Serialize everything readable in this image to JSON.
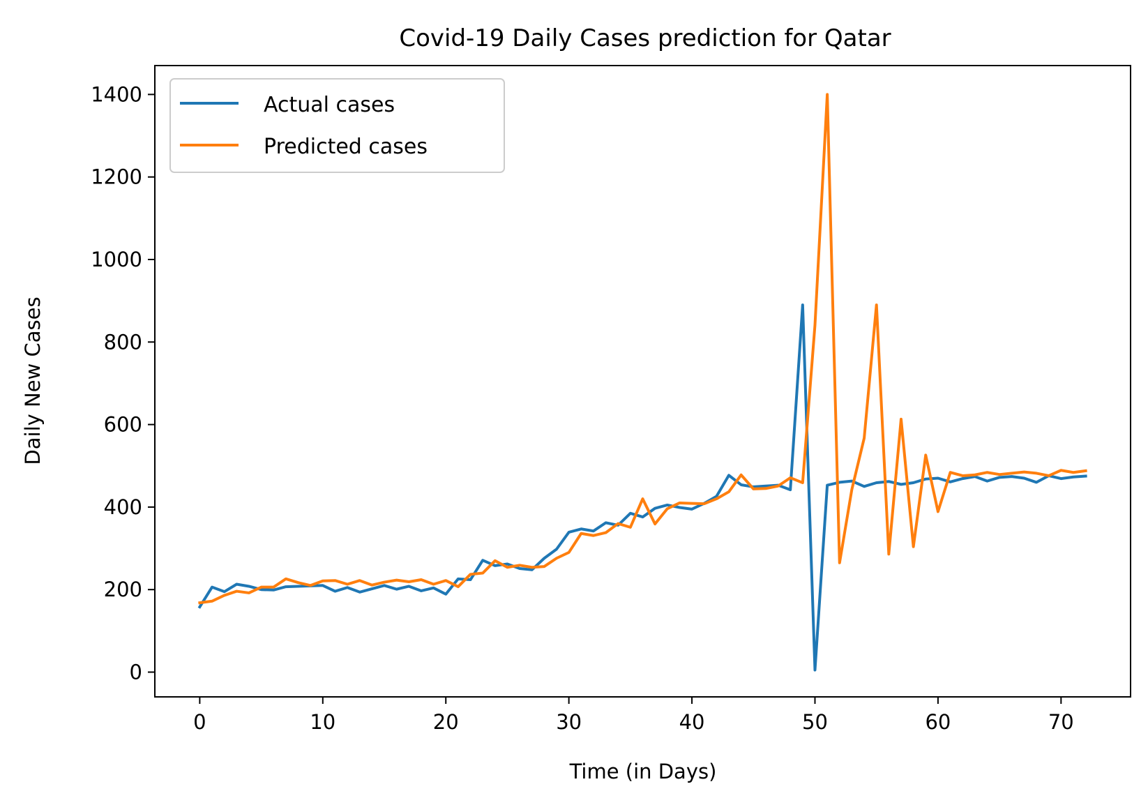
{
  "chart_data": {
    "type": "line",
    "title": "Covid-19 Daily Cases prediction for Qatar",
    "xlabel": "Time (in Days)",
    "ylabel": "Daily New Cases",
    "xlim": [
      -3.65,
      75.65
    ],
    "ylim": [
      -60,
      1470
    ],
    "xticks": [
      0,
      10,
      20,
      30,
      40,
      50,
      60,
      70
    ],
    "yticks": [
      0,
      200,
      400,
      600,
      800,
      1000,
      1200,
      1400
    ],
    "grid": false,
    "legend_position": "upper left",
    "x": [
      0,
      1,
      2,
      3,
      4,
      5,
      6,
      7,
      8,
      9,
      10,
      11,
      12,
      13,
      14,
      15,
      16,
      17,
      18,
      19,
      20,
      21,
      22,
      23,
      24,
      25,
      26,
      27,
      28,
      29,
      30,
      31,
      32,
      33,
      34,
      35,
      36,
      37,
      38,
      39,
      40,
      41,
      42,
      43,
      44,
      45,
      46,
      47,
      48,
      49,
      50,
      51,
      52,
      53,
      54,
      55,
      56,
      57,
      58,
      59,
      60,
      61,
      62,
      63,
      64,
      65,
      66,
      67,
      68,
      69,
      70,
      71,
      72
    ],
    "series": [
      {
        "name": "Actual cases",
        "color": "#1f77b4",
        "values": [
          158,
          206,
          195,
          213,
          208,
          200,
          199,
          207,
          208,
          209,
          210,
          196,
          205,
          194,
          202,
          210,
          201,
          208,
          197,
          204,
          189,
          226,
          224,
          271,
          258,
          262,
          251,
          248,
          276,
          298,
          339,
          347,
          342,
          362,
          356,
          385,
          376,
          397,
          405,
          399,
          395,
          409,
          426,
          477,
          454,
          449,
          451,
          453,
          442,
          890,
          5,
          453,
          460,
          463,
          450,
          459,
          462,
          455,
          459,
          468,
          470,
          461,
          469,
          474,
          463,
          472,
          474,
          470,
          460,
          476,
          469,
          473,
          475
        ]
      },
      {
        "name": "Predicted cases",
        "color": "#ff7f0e",
        "values": [
          168,
          172,
          186,
          196,
          192,
          206,
          206,
          226,
          217,
          210,
          221,
          222,
          213,
          222,
          211,
          218,
          223,
          219,
          224,
          213,
          222,
          207,
          237,
          240,
          270,
          254,
          259,
          254,
          256,
          276,
          290,
          336,
          331,
          338,
          360,
          351,
          420,
          359,
          396,
          410,
          409,
          408,
          420,
          437,
          478,
          444,
          445,
          451,
          471,
          459,
          841,
          1400,
          265,
          443,
          567,
          890,
          286,
          613,
          304,
          526,
          389,
          484,
          476,
          478,
          484,
          479,
          482,
          485,
          482,
          476,
          489,
          484,
          488
        ]
      }
    ]
  }
}
